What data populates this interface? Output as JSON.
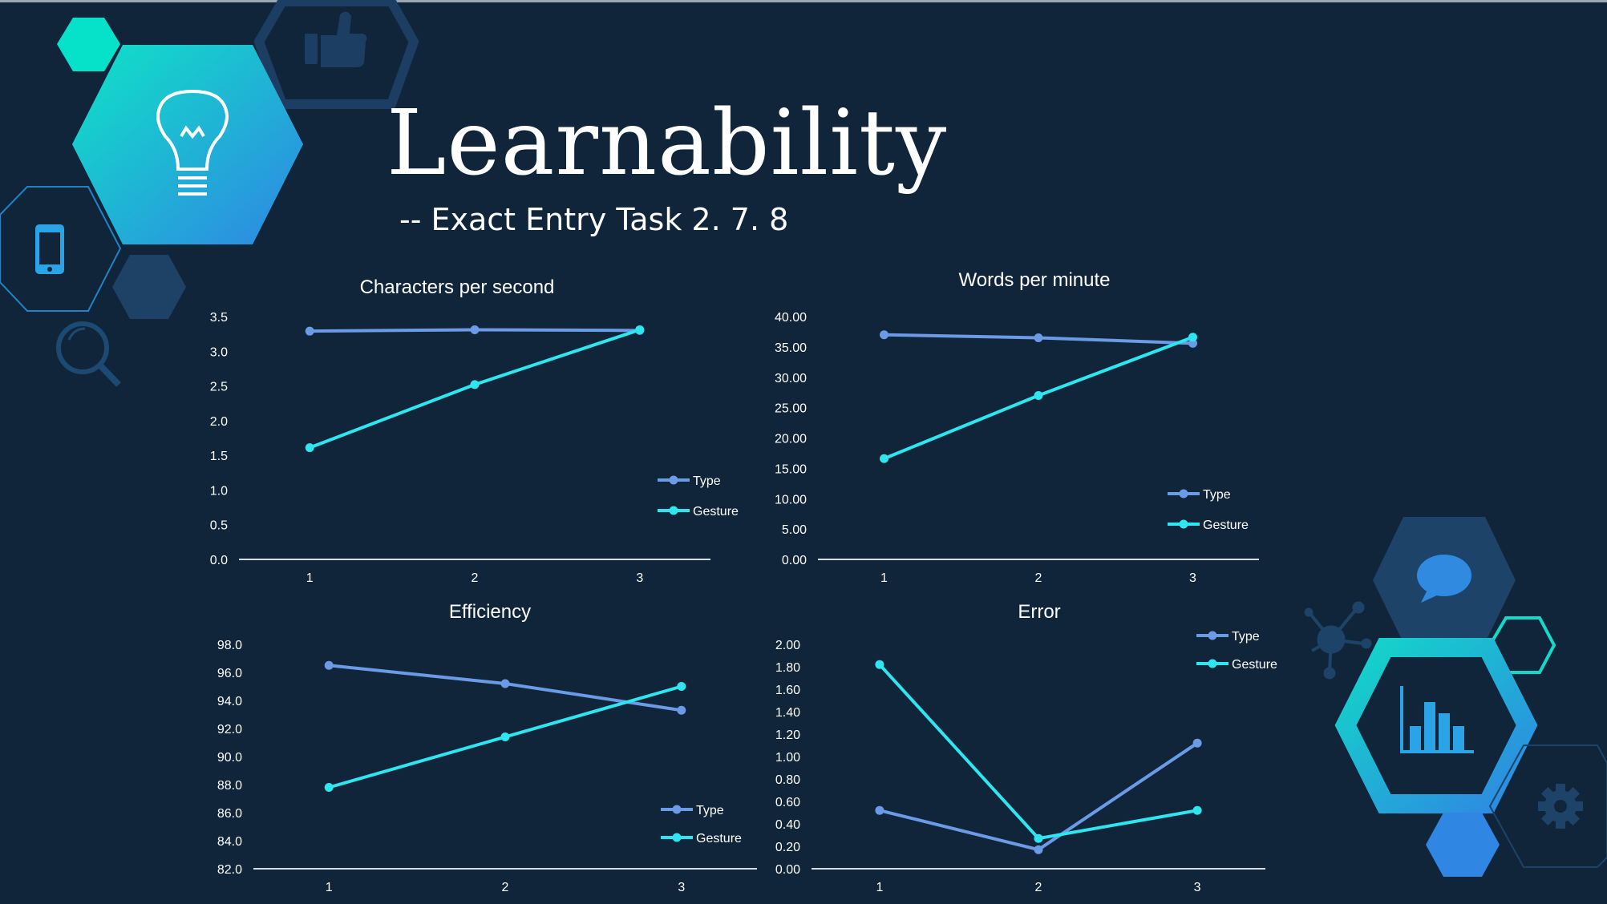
{
  "slide": {
    "title": "Learnability",
    "subtitle": "-- Exact Entry Task 2. 7. 8"
  },
  "colors": {
    "background": "#10253a",
    "type_series": "#6b9be6",
    "gesture_series": "#2ee6ef",
    "accent_teal": "#14e0c8",
    "accent_blue": "#2f8ae0",
    "hex_dark": "#1d4468"
  },
  "icons": [
    "lightbulb-icon",
    "thumbs-up-icon",
    "phone-icon",
    "search-icon",
    "chat-bubble-icon",
    "bar-chart-icon",
    "network-icon",
    "gear-icon"
  ],
  "chart_data": [
    {
      "type": "line",
      "title": "Characters per second",
      "categories": [
        "1",
        "2",
        "3"
      ],
      "yticks": [
        "0.0",
        "0.5",
        "1.0",
        "1.5",
        "2.0",
        "2.5",
        "3.0",
        "3.5"
      ],
      "ylim": [
        0,
        3.5
      ],
      "series": [
        {
          "name": "Type",
          "values": [
            3.29,
            3.31,
            3.3
          ]
        },
        {
          "name": "Gesture",
          "values": [
            1.61,
            2.52,
            3.31
          ]
        }
      ],
      "legend": "right",
      "grid": false
    },
    {
      "type": "line",
      "title": "Words per minute",
      "categories": [
        "1",
        "2",
        "3"
      ],
      "yticks": [
        "0.00",
        "5.00",
        "10.00",
        "15.00",
        "20.00",
        "25.00",
        "30.00",
        "35.00",
        "40.00"
      ],
      "ylim": [
        0,
        40
      ],
      "series": [
        {
          "name": "Type",
          "values": [
            37.0,
            36.5,
            35.6
          ]
        },
        {
          "name": "Gesture",
          "values": [
            16.6,
            27.0,
            36.6
          ]
        }
      ],
      "legend": "right",
      "grid": false
    },
    {
      "type": "line",
      "title": "Efficiency",
      "categories": [
        "1",
        "2",
        "3"
      ],
      "yticks": [
        "82.0",
        "84.0",
        "86.0",
        "88.0",
        "90.0",
        "92.0",
        "94.0",
        "96.0",
        "98.0"
      ],
      "ylim": [
        82,
        98
      ],
      "series": [
        {
          "name": "Type",
          "values": [
            96.5,
            95.2,
            93.3
          ]
        },
        {
          "name": "Gesture",
          "values": [
            87.8,
            91.4,
            95.0
          ]
        }
      ],
      "legend": "right",
      "grid": false
    },
    {
      "type": "line",
      "title": "Error",
      "categories": [
        "1",
        "2",
        "3"
      ],
      "yticks": [
        "0.00",
        "0.20",
        "0.40",
        "0.60",
        "0.80",
        "1.00",
        "1.20",
        "1.40",
        "1.60",
        "1.80",
        "2.00"
      ],
      "ylim": [
        0,
        2
      ],
      "series": [
        {
          "name": "Type",
          "values": [
            0.52,
            0.17,
            1.12
          ]
        },
        {
          "name": "Gesture",
          "values": [
            1.82,
            0.27,
            0.52
          ]
        }
      ],
      "legend": "top-right",
      "grid": false
    }
  ]
}
